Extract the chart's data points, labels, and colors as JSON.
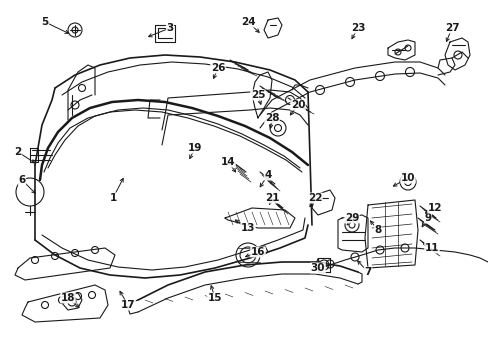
{
  "bg_color": "#ffffff",
  "line_color": "#1a1a1a",
  "figsize": [
    4.89,
    3.6
  ],
  "dpi": 100,
  "labels": [
    [
      "1",
      113,
      198,
      125,
      175
    ],
    [
      "2",
      18,
      152,
      38,
      165
    ],
    [
      "3",
      170,
      28,
      145,
      38
    ],
    [
      "4",
      268,
      175,
      258,
      190
    ],
    [
      "5",
      45,
      22,
      72,
      35
    ],
    [
      "6",
      22,
      180,
      38,
      196
    ],
    [
      "7",
      368,
      272,
      355,
      258
    ],
    [
      "8",
      378,
      230,
      368,
      218
    ],
    [
      "9",
      428,
      218,
      420,
      230
    ],
    [
      "10",
      408,
      178,
      390,
      188
    ],
    [
      "11",
      432,
      248,
      420,
      242
    ],
    [
      "12",
      435,
      208,
      422,
      215
    ],
    [
      "13",
      248,
      228,
      232,
      218
    ],
    [
      "14",
      228,
      162,
      238,
      175
    ],
    [
      "15",
      215,
      298,
      210,
      282
    ],
    [
      "16",
      258,
      252,
      242,
      258
    ],
    [
      "17",
      128,
      305,
      118,
      288
    ],
    [
      "18",
      68,
      298,
      82,
      310
    ],
    [
      "19",
      195,
      148,
      188,
      162
    ],
    [
      "20",
      298,
      105,
      288,
      118
    ],
    [
      "21",
      272,
      198,
      268,
      208
    ],
    [
      "22",
      315,
      198,
      308,
      210
    ],
    [
      "23",
      358,
      28,
      350,
      42
    ],
    [
      "24",
      248,
      22,
      262,
      35
    ],
    [
      "25",
      258,
      95,
      262,
      108
    ],
    [
      "26",
      218,
      68,
      212,
      82
    ],
    [
      "27",
      452,
      28,
      445,
      45
    ],
    [
      "28",
      272,
      118,
      270,
      132
    ],
    [
      "29",
      352,
      218,
      345,
      228
    ],
    [
      "30",
      318,
      268,
      318,
      255
    ]
  ]
}
